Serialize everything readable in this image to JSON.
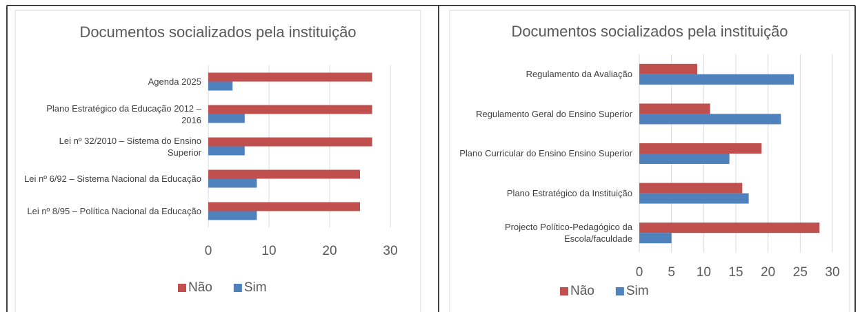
{
  "chart_data": [
    {
      "type": "bar",
      "orientation": "horizontal",
      "title": "Documentos socializados pela instituição",
      "categories": [
        "Agenda 2025",
        "Plano Estratégico da Educação 2012 – 2016",
        "Lei nº 32/2010 – Sistema do Ensino Superior",
        "Lei nº 6/92 – Sistema Nacional da Educação",
        "Lei nº 8/95 – Política Nacional da Educação"
      ],
      "series": [
        {
          "name": "Não",
          "color": "#c0504d",
          "values": [
            27,
            27,
            27,
            25,
            25
          ]
        },
        {
          "name": "Sim",
          "color": "#4f81bd",
          "values": [
            4,
            6,
            6,
            8,
            8
          ]
        }
      ],
      "xlim": [
        0,
        30
      ],
      "xticks": [
        0,
        10,
        20,
        30
      ],
      "grid": true,
      "legend": "bottom"
    },
    {
      "type": "bar",
      "orientation": "horizontal",
      "title": "Documentos socializados pela instituição",
      "categories": [
        "Regulamento da Avaliação",
        "Regulamento Geral do Ensino Superior",
        "Plano Curricular do Ensino Ensino Superior",
        "Plano Estratégico da Instituição",
        "Projecto Político-Pedagógico da Escola/faculdade"
      ],
      "series": [
        {
          "name": "Não",
          "color": "#c0504d",
          "values": [
            9,
            11,
            19,
            16,
            28
          ]
        },
        {
          "name": "Sim",
          "color": "#4f81bd",
          "values": [
            24,
            22,
            14,
            17,
            5
          ]
        }
      ],
      "xlim": [
        0,
        30
      ],
      "xticks": [
        0,
        5,
        10,
        15,
        20,
        25,
        30
      ],
      "grid": true,
      "legend": "bottom"
    }
  ]
}
